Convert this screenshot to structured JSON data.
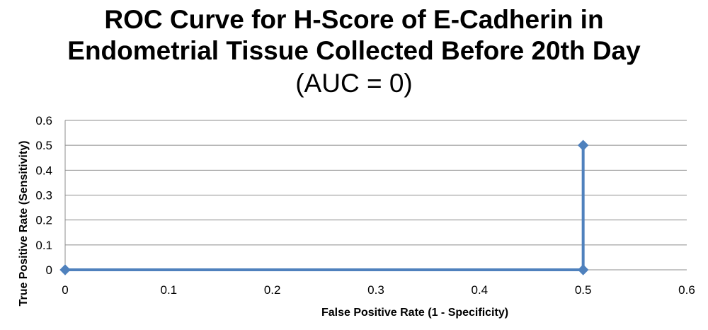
{
  "chart_data": {
    "type": "line",
    "title_lines": [
      "ROC Curve for H-Score of E-Cadherin in",
      "Endometrial Tissue Collected Before 20th Day"
    ],
    "subtitle": "(AUC = 0)",
    "xlabel": "False Positive Rate (1 - Specificity)",
    "ylabel": "True Positive Rate (Sensitivity)",
    "xlim": [
      0,
      0.6
    ],
    "ylim": [
      0,
      0.6
    ],
    "x_ticks": [
      "0",
      "0.1",
      "0.2",
      "0.3",
      "0.4",
      "0.5",
      "0.6"
    ],
    "y_ticks": [
      "0",
      "0.1",
      "0.2",
      "0.3",
      "0.4",
      "0.5",
      "0.6"
    ],
    "grid": "horizontal",
    "legend": "none",
    "series_color": "#4F81BD",
    "series": [
      {
        "x": [
          0,
          0.5,
          0.5
        ],
        "y": [
          0,
          0,
          0.5
        ]
      }
    ]
  }
}
